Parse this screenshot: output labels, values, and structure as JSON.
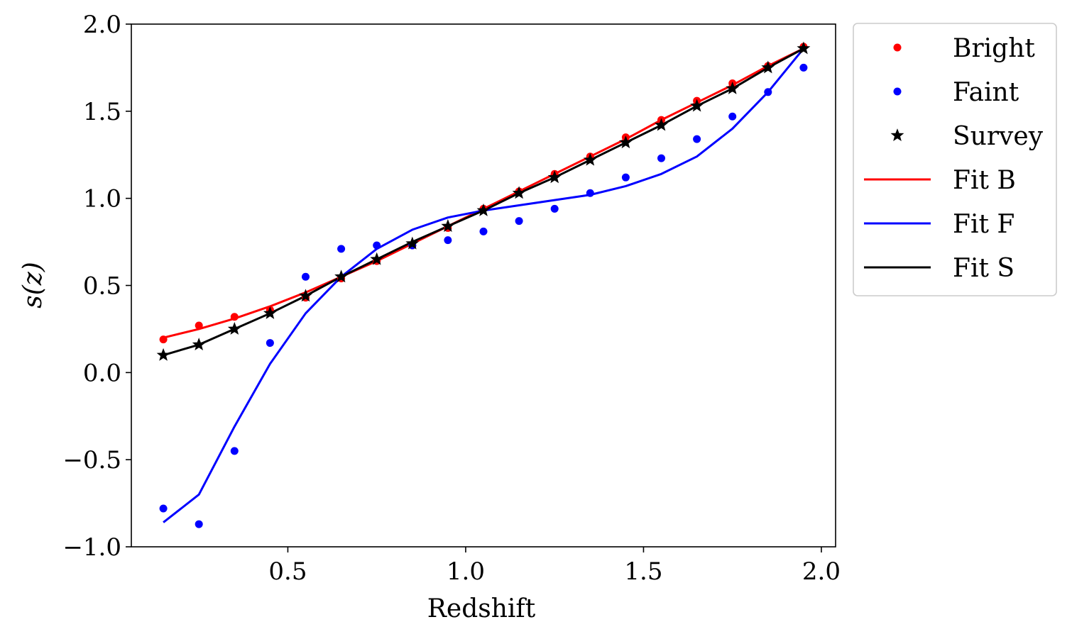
{
  "chart_data": {
    "type": "line",
    "title": "",
    "xlabel": "Redshift",
    "ylabel": "s(z)",
    "xlim": [
      0.06,
      2.04
    ],
    "ylim": [
      -1.0,
      2.0
    ],
    "xticks": [
      0.5,
      1.0,
      1.5,
      2.0
    ],
    "xtick_labels": [
      "0.5",
      "1.0",
      "1.5",
      "2.0"
    ],
    "yticks": [
      -1.0,
      -0.5,
      0.0,
      0.5,
      1.0,
      1.5,
      2.0
    ],
    "ytick_labels": [
      "−1.0",
      "−0.5",
      "0.0",
      "0.5",
      "1.0",
      "1.5",
      "2.0"
    ],
    "grid": false,
    "legend_position": "outside-right-top",
    "x": [
      0.15,
      0.25,
      0.35,
      0.45,
      0.55,
      0.65,
      0.75,
      0.85,
      0.95,
      1.05,
      1.15,
      1.25,
      1.35,
      1.45,
      1.55,
      1.65,
      1.75,
      1.85,
      1.95
    ],
    "series": [
      {
        "name": "Bright",
        "kind": "scatter",
        "marker": "dot",
        "color": "#ff0000",
        "values": [
          0.19,
          0.27,
          0.32,
          0.36,
          0.43,
          0.54,
          0.64,
          0.73,
          0.83,
          0.94,
          1.04,
          1.14,
          1.24,
          1.35,
          1.45,
          1.56,
          1.66,
          1.76,
          1.87
        ]
      },
      {
        "name": "Faint",
        "kind": "scatter",
        "marker": "dot",
        "color": "#0000ff",
        "values": [
          -0.78,
          -0.87,
          -0.45,
          0.17,
          0.55,
          0.71,
          0.73,
          0.73,
          0.76,
          0.81,
          0.87,
          0.94,
          1.03,
          1.12,
          1.23,
          1.34,
          1.47,
          1.61,
          1.75
        ]
      },
      {
        "name": "Survey",
        "kind": "scatter",
        "marker": "star",
        "color": "#000000",
        "values": [
          0.1,
          0.16,
          0.25,
          0.34,
          0.44,
          0.55,
          0.65,
          0.74,
          0.84,
          0.93,
          1.03,
          1.12,
          1.22,
          1.32,
          1.42,
          1.53,
          1.63,
          1.75,
          1.86
        ]
      },
      {
        "name": "Fit B",
        "kind": "line",
        "color": "#ff0000",
        "values": [
          0.2,
          0.25,
          0.31,
          0.38,
          0.46,
          0.55,
          0.64,
          0.74,
          0.84,
          0.94,
          1.04,
          1.14,
          1.24,
          1.34,
          1.45,
          1.55,
          1.65,
          1.76,
          1.86
        ]
      },
      {
        "name": "Fit F",
        "kind": "line",
        "color": "#0000ff",
        "values": [
          -0.86,
          -0.7,
          -0.31,
          0.05,
          0.34,
          0.55,
          0.71,
          0.82,
          0.89,
          0.93,
          0.96,
          0.99,
          1.02,
          1.07,
          1.14,
          1.24,
          1.4,
          1.61,
          1.86
        ]
      },
      {
        "name": "Fit S",
        "kind": "line",
        "color": "#000000",
        "values": [
          0.1,
          0.16,
          0.25,
          0.34,
          0.44,
          0.55,
          0.65,
          0.75,
          0.84,
          0.93,
          1.03,
          1.12,
          1.22,
          1.32,
          1.42,
          1.53,
          1.63,
          1.75,
          1.86
        ]
      }
    ]
  }
}
